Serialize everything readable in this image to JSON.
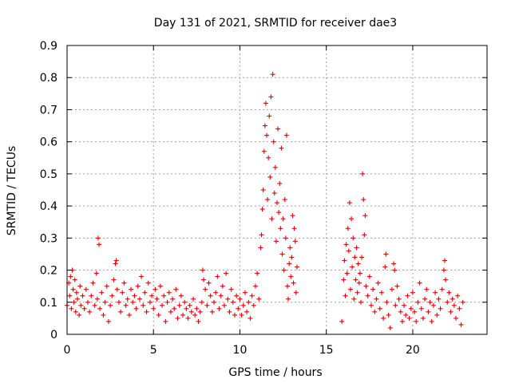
{
  "chart_data": {
    "type": "scatter",
    "title": "Day 131 of 2021, SRMTID for receiver dae3",
    "xlabel": "GPS time / hours",
    "ylabel": "SRMTID / TECUs",
    "xlim": [
      0,
      24.3
    ],
    "ylim": [
      0,
      0.9
    ],
    "xticks": [
      0,
      5,
      10,
      15,
      20
    ],
    "xtick_labels": [
      "0",
      "5",
      "10",
      "15",
      "20"
    ],
    "yticks": [
      0,
      0.1,
      0.2,
      0.3,
      0.4,
      0.5,
      0.6,
      0.7,
      0.8,
      0.9
    ],
    "ytick_labels": [
      "0",
      "0.1",
      "0.2",
      "0.3",
      "0.4",
      "0.5",
      "0.6",
      "0.7",
      "0.8",
      "0.9"
    ],
    "grid": true,
    "marker": "+",
    "color": "#e00000",
    "series": [
      {
        "name": "SRMTID",
        "points": [
          [
            0.0,
            0.09
          ],
          [
            0.1,
            0.16
          ],
          [
            0.15,
            0.12
          ],
          [
            0.2,
            0.18
          ],
          [
            0.25,
            0.08
          ],
          [
            0.3,
            0.2
          ],
          [
            0.35,
            0.14
          ],
          [
            0.4,
            0.1
          ],
          [
            0.45,
            0.17
          ],
          [
            0.5,
            0.07
          ],
          [
            0.55,
            0.13
          ],
          [
            0.6,
            0.11
          ],
          [
            0.7,
            0.06
          ],
          [
            0.75,
            0.15
          ],
          [
            0.8,
            0.09
          ],
          [
            0.9,
            0.12
          ],
          [
            1.0,
            0.08
          ],
          [
            1.1,
            0.14
          ],
          [
            1.2,
            0.1
          ],
          [
            1.3,
            0.07
          ],
          [
            1.4,
            0.12
          ],
          [
            1.5,
            0.16
          ],
          [
            1.6,
            0.09
          ],
          [
            1.7,
            0.19
          ],
          [
            1.75,
            0.11
          ],
          [
            1.8,
            0.3
          ],
          [
            1.85,
            0.28
          ],
          [
            1.9,
            0.08
          ],
          [
            2.0,
            0.13
          ],
          [
            2.1,
            0.06
          ],
          [
            2.2,
            0.1
          ],
          [
            2.3,
            0.15
          ],
          [
            2.4,
            0.04
          ],
          [
            2.5,
            0.09
          ],
          [
            2.6,
            0.12
          ],
          [
            2.7,
            0.17
          ],
          [
            2.8,
            0.22
          ],
          [
            2.85,
            0.23
          ],
          [
            2.9,
            0.14
          ],
          [
            3.0,
            0.1
          ],
          [
            3.1,
            0.07
          ],
          [
            3.2,
            0.13
          ],
          [
            3.3,
            0.16
          ],
          [
            3.4,
            0.09
          ],
          [
            3.5,
            0.11
          ],
          [
            3.6,
            0.06
          ],
          [
            3.7,
            0.14
          ],
          [
            3.8,
            0.1
          ],
          [
            3.9,
            0.12
          ],
          [
            4.0,
            0.08
          ],
          [
            4.1,
            0.15
          ],
          [
            4.2,
            0.11
          ],
          [
            4.3,
            0.18
          ],
          [
            4.4,
            0.09
          ],
          [
            4.5,
            0.13
          ],
          [
            4.6,
            0.07
          ],
          [
            4.7,
            0.16
          ],
          [
            4.8,
            0.1
          ],
          [
            4.9,
            0.12
          ],
          [
            5.0,
            0.08
          ],
          [
            5.1,
            0.14
          ],
          [
            5.2,
            0.11
          ],
          [
            5.3,
            0.06
          ],
          [
            5.4,
            0.15
          ],
          [
            5.5,
            0.09
          ],
          [
            5.6,
            0.12
          ],
          [
            5.7,
            0.04
          ],
          [
            5.8,
            0.1
          ],
          [
            5.9,
            0.13
          ],
          [
            6.0,
            0.07
          ],
          [
            6.1,
            0.11
          ],
          [
            6.2,
            0.08
          ],
          [
            6.3,
            0.14
          ],
          [
            6.4,
            0.05
          ],
          [
            6.5,
            0.09
          ],
          [
            6.6,
            0.12
          ],
          [
            6.7,
            0.06
          ],
          [
            6.8,
            0.1
          ],
          [
            6.9,
            0.08
          ],
          [
            7.0,
            0.05
          ],
          [
            7.1,
            0.09
          ],
          [
            7.2,
            0.07
          ],
          [
            7.3,
            0.11
          ],
          [
            7.4,
            0.06
          ],
          [
            7.5,
            0.08
          ],
          [
            7.6,
            0.04
          ],
          [
            7.7,
            0.07
          ],
          [
            7.8,
            0.1
          ],
          [
            7.85,
            0.2
          ],
          [
            7.9,
            0.17
          ],
          [
            8.0,
            0.14
          ],
          [
            8.1,
            0.09
          ],
          [
            8.2,
            0.16
          ],
          [
            8.3,
            0.12
          ],
          [
            8.4,
            0.07
          ],
          [
            8.5,
            0.1
          ],
          [
            8.6,
            0.13
          ],
          [
            8.7,
            0.18
          ],
          [
            8.8,
            0.08
          ],
          [
            8.9,
            0.12
          ],
          [
            9.0,
            0.15
          ],
          [
            9.1,
            0.09
          ],
          [
            9.2,
            0.19
          ],
          [
            9.3,
            0.11
          ],
          [
            9.4,
            0.07
          ],
          [
            9.5,
            0.14
          ],
          [
            9.6,
            0.1
          ],
          [
            9.7,
            0.06
          ],
          [
            9.8,
            0.12
          ],
          [
            9.9,
            0.08
          ],
          [
            10.0,
            0.11
          ],
          [
            10.1,
            0.06
          ],
          [
            10.2,
            0.09
          ],
          [
            10.3,
            0.13
          ],
          [
            10.4,
            0.07
          ],
          [
            10.5,
            0.1
          ],
          [
            10.6,
            0.05
          ],
          [
            10.7,
            0.12
          ],
          [
            10.8,
            0.09
          ],
          [
            10.9,
            0.15
          ],
          [
            11.0,
            0.19
          ],
          [
            11.1,
            0.11
          ],
          [
            11.2,
            0.27
          ],
          [
            11.25,
            0.31
          ],
          [
            11.3,
            0.39
          ],
          [
            11.35,
            0.45
          ],
          [
            11.4,
            0.57
          ],
          [
            11.45,
            0.65
          ],
          [
            11.5,
            0.72
          ],
          [
            11.55,
            0.62
          ],
          [
            11.6,
            0.42
          ],
          [
            11.65,
            0.55
          ],
          [
            11.7,
            0.68
          ],
          [
            11.75,
            0.49
          ],
          [
            11.8,
            0.74
          ],
          [
            11.85,
            0.36
          ],
          [
            11.9,
            0.81
          ],
          [
            11.95,
            0.6
          ],
          [
            12.0,
            0.44
          ],
          [
            12.05,
            0.52
          ],
          [
            12.1,
            0.29
          ],
          [
            12.15,
            0.41
          ],
          [
            12.2,
            0.64
          ],
          [
            12.25,
            0.38
          ],
          [
            12.3,
            0.47
          ],
          [
            12.35,
            0.33
          ],
          [
            12.4,
            0.58
          ],
          [
            12.45,
            0.25
          ],
          [
            12.5,
            0.36
          ],
          [
            12.55,
            0.2
          ],
          [
            12.6,
            0.42
          ],
          [
            12.65,
            0.3
          ],
          [
            12.7,
            0.62
          ],
          [
            12.75,
            0.15
          ],
          [
            12.8,
            0.11
          ],
          [
            12.85,
            0.22
          ],
          [
            12.9,
            0.27
          ],
          [
            12.95,
            0.18
          ],
          [
            13.0,
            0.24
          ],
          [
            13.05,
            0.37
          ],
          [
            13.1,
            0.16
          ],
          [
            13.15,
            0.33
          ],
          [
            13.2,
            0.29
          ],
          [
            13.25,
            0.13
          ],
          [
            13.3,
            0.21
          ],
          [
            15.9,
            0.04
          ],
          [
            16.0,
            0.17
          ],
          [
            16.05,
            0.23
          ],
          [
            16.1,
            0.12
          ],
          [
            16.15,
            0.28
          ],
          [
            16.2,
            0.19
          ],
          [
            16.25,
            0.33
          ],
          [
            16.3,
            0.26
          ],
          [
            16.35,
            0.41
          ],
          [
            16.4,
            0.14
          ],
          [
            16.45,
            0.36
          ],
          [
            16.5,
            0.21
          ],
          [
            16.55,
            0.3
          ],
          [
            16.6,
            0.11
          ],
          [
            16.65,
            0.24
          ],
          [
            16.7,
            0.17
          ],
          [
            16.75,
            0.27
          ],
          [
            16.8,
            0.13
          ],
          [
            16.85,
            0.22
          ],
          [
            16.9,
            0.16
          ],
          [
            16.95,
            0.19
          ],
          [
            17.0,
            0.1
          ],
          [
            17.05,
            0.24
          ],
          [
            17.1,
            0.5
          ],
          [
            17.15,
            0.42
          ],
          [
            17.2,
            0.31
          ],
          [
            17.25,
            0.37
          ],
          [
            17.3,
            0.15
          ],
          [
            17.4,
            0.12
          ],
          [
            17.5,
            0.18
          ],
          [
            17.6,
            0.09
          ],
          [
            17.7,
            0.14
          ],
          [
            17.8,
            0.07
          ],
          [
            17.9,
            0.11
          ],
          [
            18.0,
            0.16
          ],
          [
            18.1,
            0.08
          ],
          [
            18.2,
            0.13
          ],
          [
            18.3,
            0.05
          ],
          [
            18.4,
            0.21
          ],
          [
            18.45,
            0.25
          ],
          [
            18.5,
            0.1
          ],
          [
            18.6,
            0.06
          ],
          [
            18.7,
            0.02
          ],
          [
            18.8,
            0.14
          ],
          [
            18.9,
            0.22
          ],
          [
            18.95,
            0.2
          ],
          [
            19.0,
            0.09
          ],
          [
            19.1,
            0.15
          ],
          [
            19.2,
            0.11
          ],
          [
            19.3,
            0.07
          ],
          [
            19.4,
            0.04
          ],
          [
            19.5,
            0.09
          ],
          [
            19.6,
            0.06
          ],
          [
            19.7,
            0.12
          ],
          [
            19.8,
            0.05
          ],
          [
            19.9,
            0.08
          ],
          [
            20.0,
            0.13
          ],
          [
            20.1,
            0.07
          ],
          [
            20.2,
            0.04
          ],
          [
            20.3,
            0.1
          ],
          [
            20.4,
            0.16
          ],
          [
            20.5,
            0.08
          ],
          [
            20.6,
            0.05
          ],
          [
            20.7,
            0.11
          ],
          [
            20.8,
            0.14
          ],
          [
            20.9,
            0.07
          ],
          [
            21.0,
            0.1
          ],
          [
            21.1,
            0.04
          ],
          [
            21.2,
            0.09
          ],
          [
            21.3,
            0.13
          ],
          [
            21.4,
            0.06
          ],
          [
            21.5,
            0.11
          ],
          [
            21.6,
            0.08
          ],
          [
            21.7,
            0.14
          ],
          [
            21.8,
            0.2
          ],
          [
            21.85,
            0.23
          ],
          [
            21.9,
            0.17
          ],
          [
            22.0,
            0.1
          ],
          [
            22.1,
            0.13
          ],
          [
            22.2,
            0.07
          ],
          [
            22.3,
            0.11
          ],
          [
            22.4,
            0.09
          ],
          [
            22.5,
            0.05
          ],
          [
            22.6,
            0.12
          ],
          [
            22.7,
            0.08
          ],
          [
            22.8,
            0.03
          ],
          [
            22.9,
            0.1
          ]
        ]
      }
    ]
  }
}
